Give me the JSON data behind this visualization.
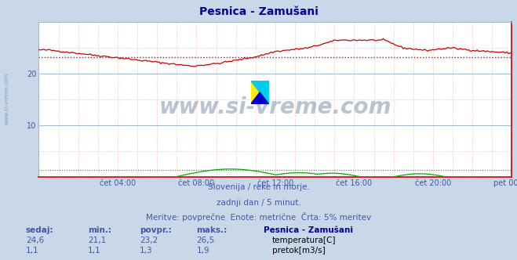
{
  "title": "Pesnica - Zamušani",
  "title_color": "#000099",
  "bg_color": "#c8d8e8",
  "plot_bg_color": "#ffffff",
  "grid_color_major": "#a0b8cc",
  "ylim": [
    0,
    30
  ],
  "xtick_labels": [
    "čet 04:00",
    "čet 08:00",
    "čet 12:00",
    "čet 16:00",
    "čet 20:00",
    "pet 00:00"
  ],
  "xtick_positions": [
    0.1667,
    0.3333,
    0.5,
    0.6667,
    0.8333,
    1.0
  ],
  "tick_color": "#4455aa",
  "temp_color": "#cc0000",
  "flow_color": "#00aa00",
  "avg_temp": 23.2,
  "avg_flow": 1.3,
  "footer_line1": "Slovenija / reke in morje.",
  "footer_line2": "zadnji dan / 5 minut.",
  "footer_line3": "Meritve: povprečne  Enote: metrične  Črta: 5% meritev",
  "footer_color": "#4455aa",
  "table_headers": [
    "sedaj:",
    "min.:",
    "povpr.:",
    "maks.:"
  ],
  "table_color": "#4455aa",
  "station_label": "Pesnica - Zamušani",
  "temp_row": [
    "24,6",
    "21,1",
    "23,2",
    "26,5"
  ],
  "flow_row": [
    "1,1",
    "1,1",
    "1,3",
    "1,9"
  ],
  "temp_label": "temperatura[C]",
  "flow_label": "pretok[m3/s]",
  "watermark_text": "www.si-vreme.com",
  "watermark_color": "#1a3a6a",
  "watermark_alpha": 0.3,
  "side_watermark": "www.si-vreme.com",
  "side_watermark_color": "#6688aa",
  "side_watermark_alpha": 0.7
}
